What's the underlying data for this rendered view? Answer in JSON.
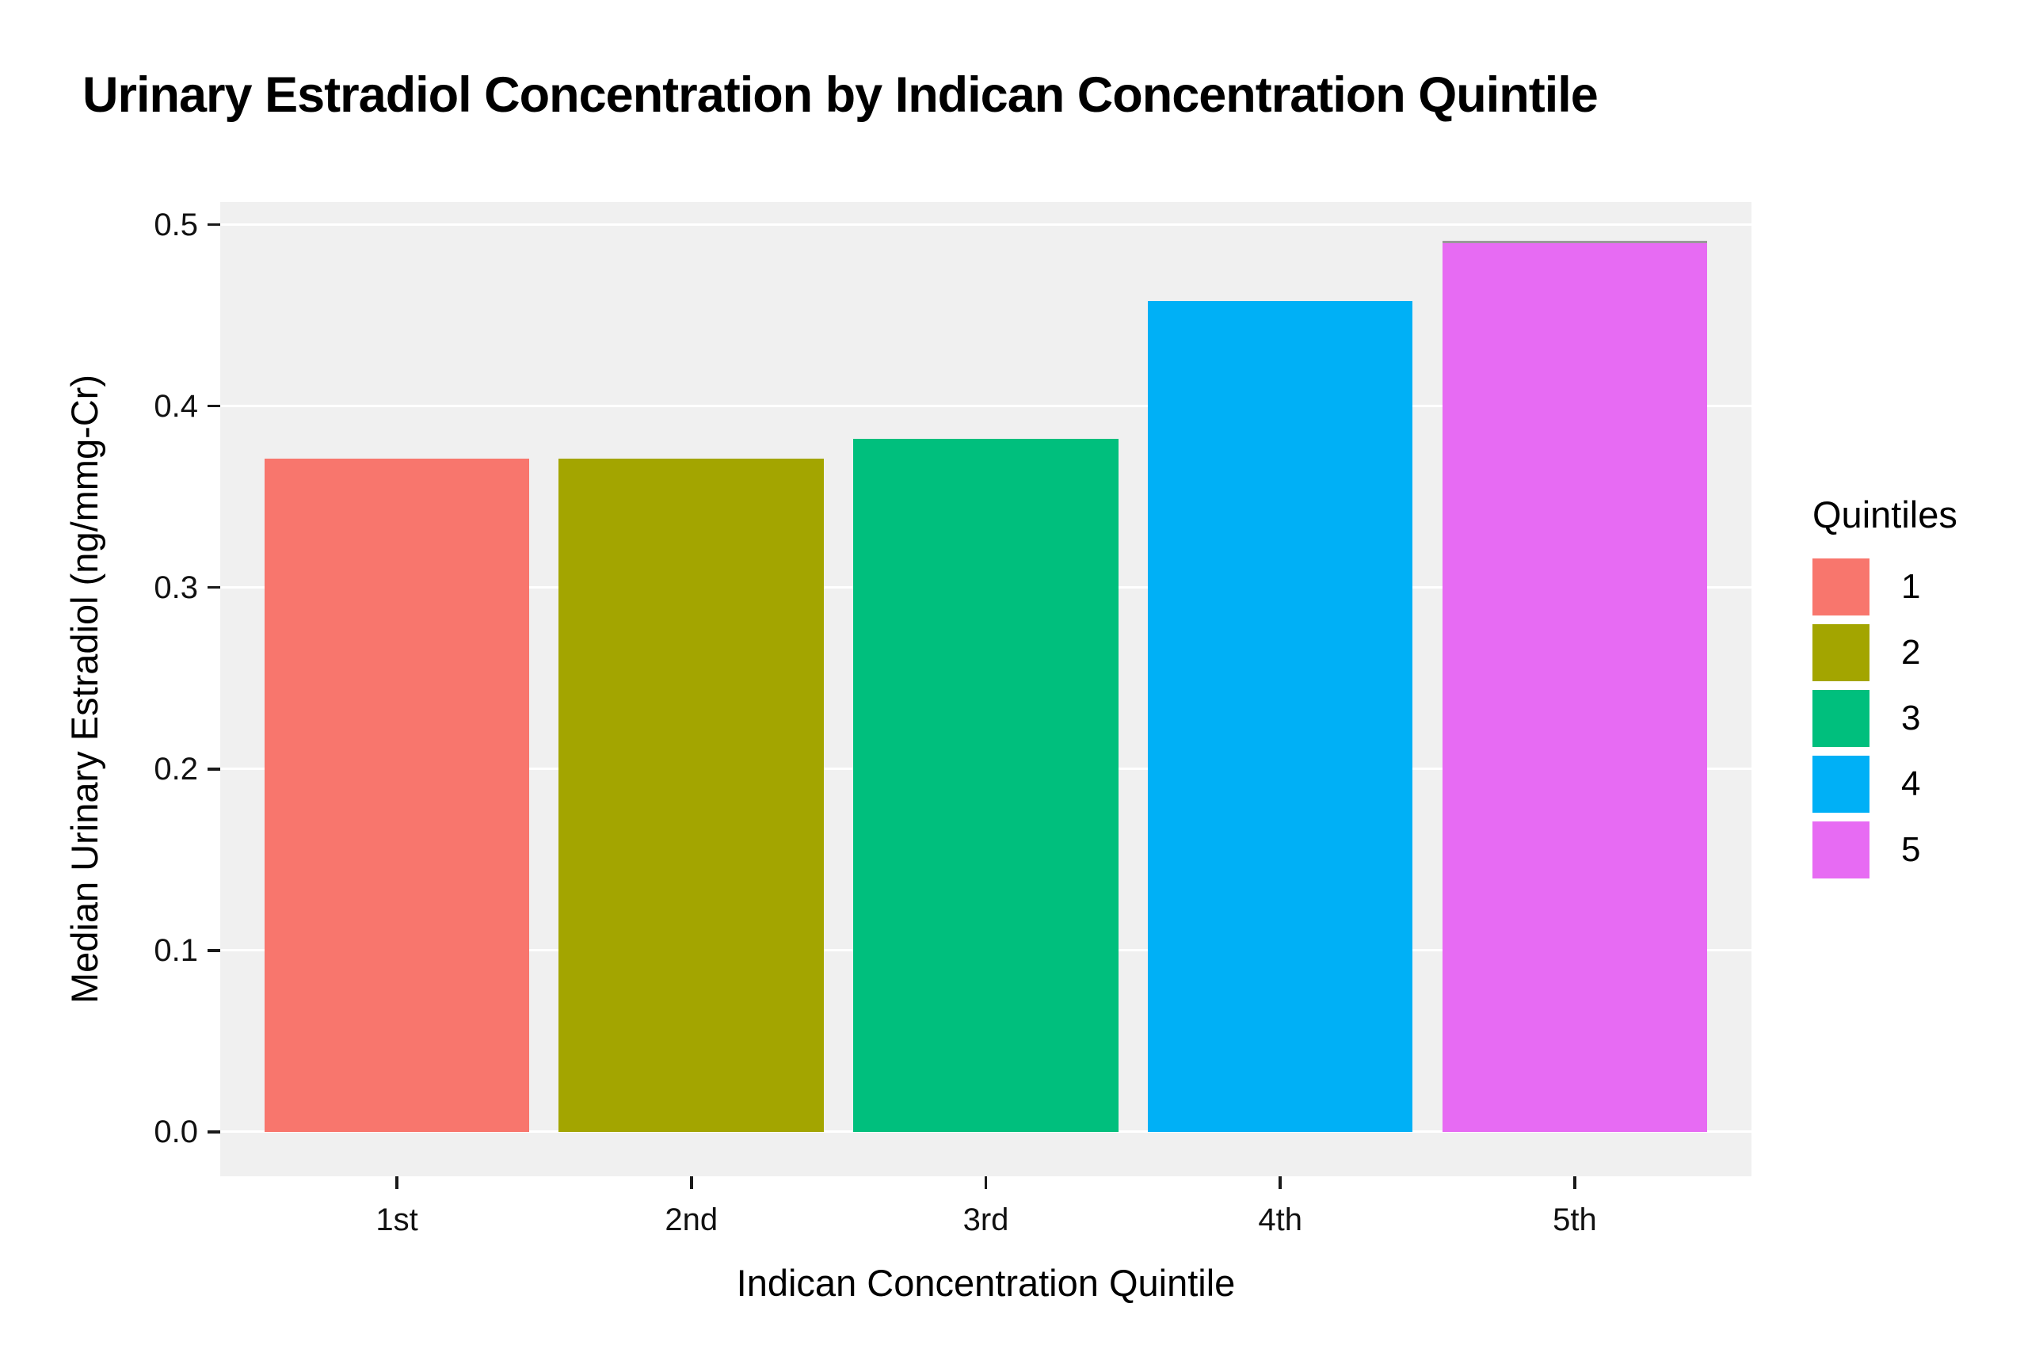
{
  "title": "Urinary Estradiol Concentration by Indican Concentration Quintile",
  "chart_data": {
    "type": "bar",
    "title": "Urinary Estradiol Concentration by Indican Concentration Quintile",
    "categories": [
      "1st",
      "2nd",
      "3rd",
      "4th",
      "5th"
    ],
    "values": [
      0.371,
      0.371,
      0.382,
      0.458,
      0.491
    ],
    "xlabel": "Indican Concentration Quintile",
    "ylabel": "Median Urinary Estradiol (ng/mmg-Cr)",
    "ylim": [
      0,
      0.5
    ],
    "yticks": [
      0.0,
      0.1,
      0.2,
      0.3,
      0.4,
      0.5
    ],
    "ytick_labels": [
      "0.0",
      "0.1",
      "0.2",
      "0.3",
      "0.4",
      "0.5"
    ],
    "panel_value_range": [
      -0.0245,
      0.5125
    ],
    "grid": "horizontal-major-only",
    "bar_colors": [
      "#F8766D",
      "#A3A500",
      "#00BF7D",
      "#00B0F6",
      "#E76BF3"
    ],
    "bar_top_edges": [
      null,
      null,
      null,
      null,
      "#999999"
    ],
    "panel_bg": "#f0f0f0",
    "gridline_color": "#ffffff",
    "legend": {
      "title": "Quintiles",
      "position": "right",
      "entries": [
        {
          "label": "1",
          "color": "#F8766D"
        },
        {
          "label": "2",
          "color": "#A3A500"
        },
        {
          "label": "3",
          "color": "#00BF7D"
        },
        {
          "label": "4",
          "color": "#00B0F6"
        },
        {
          "label": "5",
          "color": "#E76BF3"
        }
      ]
    }
  }
}
